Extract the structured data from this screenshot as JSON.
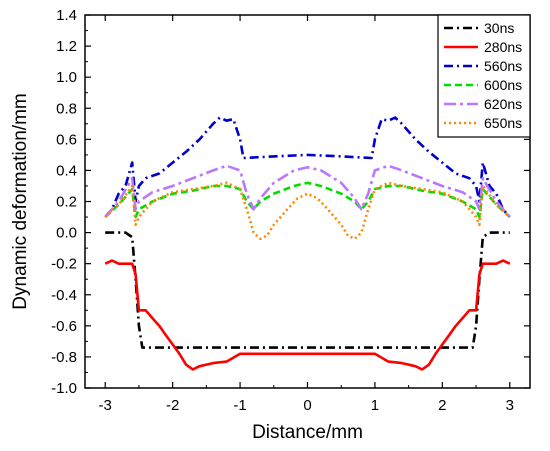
{
  "chart_data": {
    "type": "line",
    "xlabel": "Distance/mm",
    "ylabel": "Dynamic deformation/mm",
    "xlim": [
      -3.3,
      3.3
    ],
    "ylim": [
      -1.0,
      1.4
    ],
    "xticks": [
      -3,
      -2,
      -1,
      0,
      1,
      2,
      3
    ],
    "yticks": [
      -1.0,
      -0.8,
      -0.6,
      -0.4,
      -0.2,
      0.0,
      0.2,
      0.4,
      0.6,
      0.8,
      1.0,
      1.2,
      1.4
    ],
    "xtick_labels": [
      "-3",
      "-2",
      "-1",
      "0",
      "1",
      "2",
      "3"
    ],
    "ytick_labels": [
      "-1.0",
      "-0.8",
      "-0.6",
      "-0.4",
      "-0.2",
      "0.0",
      "0.2",
      "0.4",
      "0.6",
      "0.8",
      "1.0",
      "1.2",
      "1.4"
    ],
    "legend_position": "top-right",
    "grid": false,
    "series": [
      {
        "name": "30ns",
        "color": "#000000",
        "dash": "dash-dot",
        "points": [
          [
            -3.0,
            0.0
          ],
          [
            -2.7,
            0.0
          ],
          [
            -2.6,
            -0.03
          ],
          [
            -2.55,
            -0.3
          ],
          [
            -2.5,
            -0.6
          ],
          [
            -2.45,
            -0.74
          ],
          [
            -1.5,
            -0.74
          ],
          [
            0.0,
            -0.74
          ],
          [
            1.5,
            -0.74
          ],
          [
            2.45,
            -0.74
          ],
          [
            2.5,
            -0.6
          ],
          [
            2.55,
            -0.3
          ],
          [
            2.6,
            -0.03
          ],
          [
            2.7,
            0.0
          ],
          [
            3.0,
            0.0
          ]
        ]
      },
      {
        "name": "280ns",
        "color": "#ff0000",
        "dash": "solid",
        "points": [
          [
            -3.0,
            -0.2
          ],
          [
            -2.9,
            -0.18
          ],
          [
            -2.8,
            -0.2
          ],
          [
            -2.6,
            -0.2
          ],
          [
            -2.55,
            -0.27
          ],
          [
            -2.5,
            -0.5
          ],
          [
            -2.4,
            -0.5
          ],
          [
            -2.3,
            -0.55
          ],
          [
            -2.2,
            -0.6
          ],
          [
            -2.1,
            -0.66
          ],
          [
            -2.0,
            -0.72
          ],
          [
            -1.9,
            -0.78
          ],
          [
            -1.8,
            -0.85
          ],
          [
            -1.7,
            -0.88
          ],
          [
            -1.6,
            -0.86
          ],
          [
            -1.4,
            -0.84
          ],
          [
            -1.2,
            -0.83
          ],
          [
            -1.0,
            -0.78
          ],
          [
            -0.5,
            -0.78
          ],
          [
            0.0,
            -0.78
          ],
          [
            0.5,
            -0.78
          ],
          [
            1.0,
            -0.78
          ],
          [
            1.2,
            -0.83
          ],
          [
            1.4,
            -0.84
          ],
          [
            1.6,
            -0.86
          ],
          [
            1.7,
            -0.88
          ],
          [
            1.8,
            -0.85
          ],
          [
            1.9,
            -0.78
          ],
          [
            2.0,
            -0.72
          ],
          [
            2.1,
            -0.66
          ],
          [
            2.2,
            -0.6
          ],
          [
            2.3,
            -0.55
          ],
          [
            2.4,
            -0.5
          ],
          [
            2.5,
            -0.5
          ],
          [
            2.55,
            -0.27
          ],
          [
            2.6,
            -0.2
          ],
          [
            2.8,
            -0.2
          ],
          [
            2.9,
            -0.18
          ],
          [
            3.0,
            -0.2
          ]
        ]
      },
      {
        "name": "560ns",
        "color": "#0000cc",
        "dash": "dash-dot",
        "points": [
          [
            -3.0,
            0.1
          ],
          [
            -2.9,
            0.15
          ],
          [
            -2.8,
            0.25
          ],
          [
            -2.7,
            0.3
          ],
          [
            -2.6,
            0.45
          ],
          [
            -2.55,
            0.2
          ],
          [
            -2.5,
            0.3
          ],
          [
            -2.4,
            0.35
          ],
          [
            -2.2,
            0.38
          ],
          [
            -2.0,
            0.45
          ],
          [
            -1.8,
            0.52
          ],
          [
            -1.6,
            0.6
          ],
          [
            -1.4,
            0.7
          ],
          [
            -1.3,
            0.74
          ],
          [
            -1.2,
            0.72
          ],
          [
            -1.1,
            0.73
          ],
          [
            -1.0,
            0.6
          ],
          [
            -0.95,
            0.48
          ],
          [
            -0.5,
            0.49
          ],
          [
            0.0,
            0.5
          ],
          [
            0.5,
            0.49
          ],
          [
            0.95,
            0.48
          ],
          [
            1.0,
            0.6
          ],
          [
            1.1,
            0.73
          ],
          [
            1.2,
            0.72
          ],
          [
            1.3,
            0.74
          ],
          [
            1.4,
            0.7
          ],
          [
            1.6,
            0.6
          ],
          [
            1.8,
            0.52
          ],
          [
            2.0,
            0.45
          ],
          [
            2.2,
            0.38
          ],
          [
            2.4,
            0.35
          ],
          [
            2.5,
            0.3
          ],
          [
            2.55,
            0.2
          ],
          [
            2.6,
            0.45
          ],
          [
            2.7,
            0.3
          ],
          [
            2.8,
            0.25
          ],
          [
            2.9,
            0.15
          ],
          [
            3.0,
            0.1
          ]
        ]
      },
      {
        "name": "600ns",
        "color": "#00dd00",
        "dash": "dash",
        "points": [
          [
            -3.0,
            0.1
          ],
          [
            -2.8,
            0.18
          ],
          [
            -2.6,
            0.28
          ],
          [
            -2.55,
            0.1
          ],
          [
            -2.5,
            0.15
          ],
          [
            -2.3,
            0.2
          ],
          [
            -2.0,
            0.25
          ],
          [
            -1.7,
            0.27
          ],
          [
            -1.4,
            0.3
          ],
          [
            -1.2,
            0.3
          ],
          [
            -1.0,
            0.28
          ],
          [
            -0.9,
            0.2
          ],
          [
            -0.8,
            0.15
          ],
          [
            -0.7,
            0.2
          ],
          [
            -0.5,
            0.25
          ],
          [
            -0.2,
            0.3
          ],
          [
            0.0,
            0.32
          ],
          [
            0.2,
            0.3
          ],
          [
            0.5,
            0.25
          ],
          [
            0.7,
            0.2
          ],
          [
            0.8,
            0.15
          ],
          [
            0.9,
            0.2
          ],
          [
            1.0,
            0.28
          ],
          [
            1.2,
            0.3
          ],
          [
            1.4,
            0.3
          ],
          [
            1.7,
            0.27
          ],
          [
            2.0,
            0.25
          ],
          [
            2.3,
            0.2
          ],
          [
            2.5,
            0.15
          ],
          [
            2.55,
            0.1
          ],
          [
            2.6,
            0.28
          ],
          [
            2.8,
            0.18
          ],
          [
            3.0,
            0.1
          ]
        ]
      },
      {
        "name": "620ns",
        "color": "#bb77ff",
        "dash": "long-dash-dot",
        "points": [
          [
            -3.0,
            0.1
          ],
          [
            -2.8,
            0.2
          ],
          [
            -2.6,
            0.35
          ],
          [
            -2.55,
            0.15
          ],
          [
            -2.5,
            0.2
          ],
          [
            -2.3,
            0.26
          ],
          [
            -2.0,
            0.3
          ],
          [
            -1.7,
            0.35
          ],
          [
            -1.4,
            0.4
          ],
          [
            -1.2,
            0.43
          ],
          [
            -1.0,
            0.4
          ],
          [
            -0.9,
            0.25
          ],
          [
            -0.8,
            0.15
          ],
          [
            -0.7,
            0.22
          ],
          [
            -0.5,
            0.32
          ],
          [
            -0.2,
            0.4
          ],
          [
            0.0,
            0.42
          ],
          [
            0.2,
            0.4
          ],
          [
            0.5,
            0.32
          ],
          [
            0.7,
            0.22
          ],
          [
            0.8,
            0.15
          ],
          [
            0.9,
            0.25
          ],
          [
            1.0,
            0.4
          ],
          [
            1.2,
            0.43
          ],
          [
            1.4,
            0.4
          ],
          [
            1.7,
            0.35
          ],
          [
            2.0,
            0.3
          ],
          [
            2.3,
            0.26
          ],
          [
            2.5,
            0.2
          ],
          [
            2.55,
            0.15
          ],
          [
            2.6,
            0.35
          ],
          [
            2.8,
            0.2
          ],
          [
            3.0,
            0.1
          ]
        ]
      },
      {
        "name": "650ns",
        "color": "#ff8800",
        "dash": "dot",
        "points": [
          [
            -3.0,
            0.1
          ],
          [
            -2.8,
            0.18
          ],
          [
            -2.6,
            0.3
          ],
          [
            -2.55,
            0.05
          ],
          [
            -2.5,
            0.1
          ],
          [
            -2.3,
            0.2
          ],
          [
            -2.0,
            0.26
          ],
          [
            -1.7,
            0.28
          ],
          [
            -1.4,
            0.3
          ],
          [
            -1.2,
            0.32
          ],
          [
            -1.0,
            0.28
          ],
          [
            -0.9,
            0.15
          ],
          [
            -0.8,
            0.0
          ],
          [
            -0.7,
            -0.04
          ],
          [
            -0.6,
            -0.02
          ],
          [
            -0.5,
            0.05
          ],
          [
            -0.3,
            0.15
          ],
          [
            -0.15,
            0.22
          ],
          [
            0.0,
            0.25
          ],
          [
            0.15,
            0.22
          ],
          [
            0.3,
            0.15
          ],
          [
            0.5,
            0.05
          ],
          [
            0.6,
            -0.02
          ],
          [
            0.7,
            -0.04
          ],
          [
            0.8,
            0.0
          ],
          [
            0.9,
            0.15
          ],
          [
            1.0,
            0.28
          ],
          [
            1.2,
            0.32
          ],
          [
            1.4,
            0.3
          ],
          [
            1.7,
            0.28
          ],
          [
            2.0,
            0.26
          ],
          [
            2.3,
            0.2
          ],
          [
            2.5,
            0.1
          ],
          [
            2.55,
            0.05
          ],
          [
            2.6,
            0.3
          ],
          [
            2.8,
            0.18
          ],
          [
            3.0,
            0.1
          ]
        ]
      }
    ]
  }
}
